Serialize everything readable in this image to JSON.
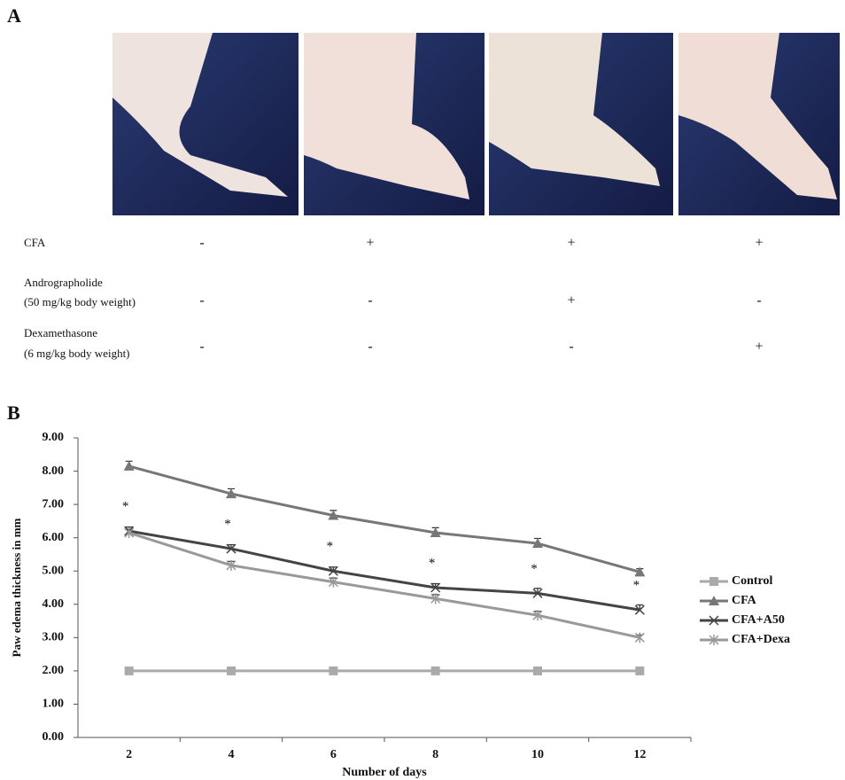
{
  "panel_a": {
    "label": "A",
    "rows": [
      {
        "label": [
          "CFA"
        ],
        "cells": [
          "-",
          "+",
          "+",
          "+"
        ]
      },
      {
        "label": [
          "Andrographolide",
          "(50 mg/kg body weight)"
        ],
        "cells": [
          "-",
          "-",
          "+",
          "-"
        ]
      },
      {
        "label": [
          "Dexamethasone",
          "(6 mg/kg body weight)"
        ],
        "cells": [
          "-",
          "-",
          "-",
          "+"
        ]
      }
    ]
  },
  "panel_b": {
    "label": "B"
  },
  "chart_data": {
    "type": "line",
    "y_label": "Paw edema thickness in mm",
    "x_label": "Number of days",
    "categories": [
      "2",
      "4",
      "6",
      "8",
      "10",
      "12"
    ],
    "ylim": [
      0,
      9
    ],
    "yticks": [
      {
        "value": 0,
        "label": "0.00"
      },
      {
        "value": 1,
        "label": "1.00"
      },
      {
        "value": 2,
        "label": "2.00"
      },
      {
        "value": 3,
        "label": "3.00"
      },
      {
        "value": 4,
        "label": "4.00"
      },
      {
        "value": 5,
        "label": "5.00"
      },
      {
        "value": 6,
        "label": "6.00"
      },
      {
        "value": 7,
        "label": "7.00"
      },
      {
        "value": 8,
        "label": "8.00"
      },
      {
        "value": 9,
        "label": "9.00"
      }
    ],
    "series": [
      {
        "name": "Control",
        "color": "#aaaaaa",
        "marker": "square",
        "values": [
          2,
          2,
          2,
          2,
          2,
          2
        ]
      },
      {
        "name": "CFA",
        "color": "#777777",
        "marker": "triangle",
        "values": [
          8.15,
          7.32,
          6.67,
          6.15,
          5.83,
          4.97
        ],
        "errors": [
          0.15,
          0.15,
          0.15,
          0.15,
          0.15,
          0.1
        ]
      },
      {
        "name": "CFA+A50",
        "color": "#444444",
        "marker": "x",
        "values": [
          6.2,
          5.67,
          5.0,
          4.5,
          4.33,
          3.83
        ],
        "errors": [
          0.12,
          0.12,
          0.12,
          0.12,
          0.15,
          0.15
        ]
      },
      {
        "name": "CFA+Dexa",
        "color": "#999999",
        "marker": "star",
        "values": [
          6.15,
          5.17,
          4.67,
          4.17,
          3.67,
          3.0
        ],
        "errors": [
          0.1,
          0.12,
          0.12,
          0.12,
          0.12,
          0.08
        ]
      }
    ],
    "significance": [
      "*",
      "*",
      "*",
      "*",
      "*",
      "*"
    ],
    "legend": "right"
  }
}
